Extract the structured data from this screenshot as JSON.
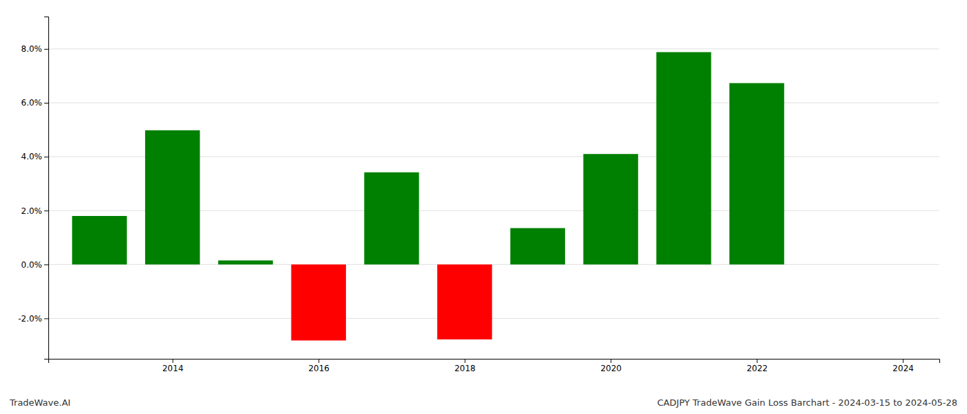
{
  "chart_data": {
    "type": "bar",
    "x": [
      2013,
      2014,
      2015,
      2016,
      2017,
      2018,
      2019,
      2020,
      2021,
      2022
    ],
    "values": [
      1.8,
      4.98,
      0.15,
      -2.82,
      3.42,
      -2.78,
      1.35,
      4.1,
      7.88,
      6.73
    ],
    "colors": [
      "#008000",
      "#008000",
      "#008000",
      "#ff0000",
      "#008000",
      "#ff0000",
      "#008000",
      "#008000",
      "#008000",
      "#008000"
    ],
    "xlim": [
      2012.3,
      2024.5
    ],
    "xticks": [
      2014,
      2016,
      2018,
      2020,
      2022,
      2024
    ],
    "ylim": [
      -3.5,
      9.2
    ],
    "yticks": [
      {
        "value": -2.0,
        "label": "-2.0%"
      },
      {
        "value": 0.0,
        "label": "0.0%"
      },
      {
        "value": 2.0,
        "label": "2.0%"
      },
      {
        "value": 4.0,
        "label": "4.0%"
      },
      {
        "value": 6.0,
        "label": "6.0%"
      },
      {
        "value": 8.0,
        "label": "8.0%"
      }
    ],
    "grid": true,
    "annotations": [
      "TradeWave.AI",
      "CADJPY TradeWave Gain Loss Barchart - 2024-03-15 to 2024-05-28"
    ]
  }
}
